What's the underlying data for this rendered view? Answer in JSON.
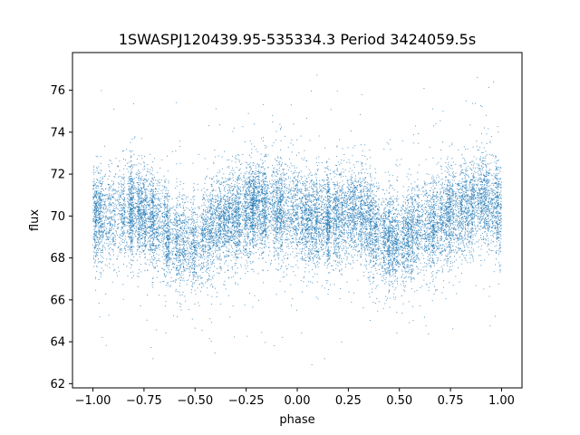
{
  "chart_data": {
    "type": "scatter",
    "title": "1SWASPJ120439.95-535334.3 Period 3424059.5s",
    "xlabel": "phase",
    "ylabel": "flux",
    "xlim": [
      -1.1,
      1.1
    ],
    "ylim": [
      61.8,
      77.8
    ],
    "xticks": [
      -1.0,
      -0.75,
      -0.5,
      -0.25,
      0.0,
      0.25,
      0.5,
      0.75,
      1.0
    ],
    "xtick_labels": [
      "−1.00",
      "−0.75",
      "−0.50",
      "−0.25",
      "0.00",
      "0.25",
      "0.50",
      "0.75",
      "1.00"
    ],
    "yticks": [
      62,
      64,
      66,
      68,
      70,
      72,
      74,
      76
    ],
    "ytick_labels": [
      "62",
      "64",
      "66",
      "68",
      "70",
      "72",
      "74",
      "76"
    ],
    "grid": false,
    "marker_color": "#1f77b4",
    "series": [
      {
        "phase_profile": {
          "x": [
            -1.0,
            -0.9,
            -0.8,
            -0.7,
            -0.6,
            -0.5,
            -0.4,
            -0.3,
            -0.2,
            -0.1,
            0.0,
            0.1,
            0.2,
            0.3,
            0.4,
            0.5,
            0.6,
            0.7,
            0.8,
            0.9,
            1.0
          ],
          "mean_flux": [
            70.0,
            70.0,
            70.3,
            69.8,
            68.8,
            68.6,
            69.6,
            70.0,
            70.5,
            70.4,
            70.0,
            69.8,
            70.0,
            70.3,
            69.0,
            68.8,
            69.3,
            69.8,
            70.3,
            70.8,
            70.2
          ]
        },
        "flux_range": [
          62.6,
          77.0
        ],
        "approx_points": 16000
      }
    ]
  }
}
